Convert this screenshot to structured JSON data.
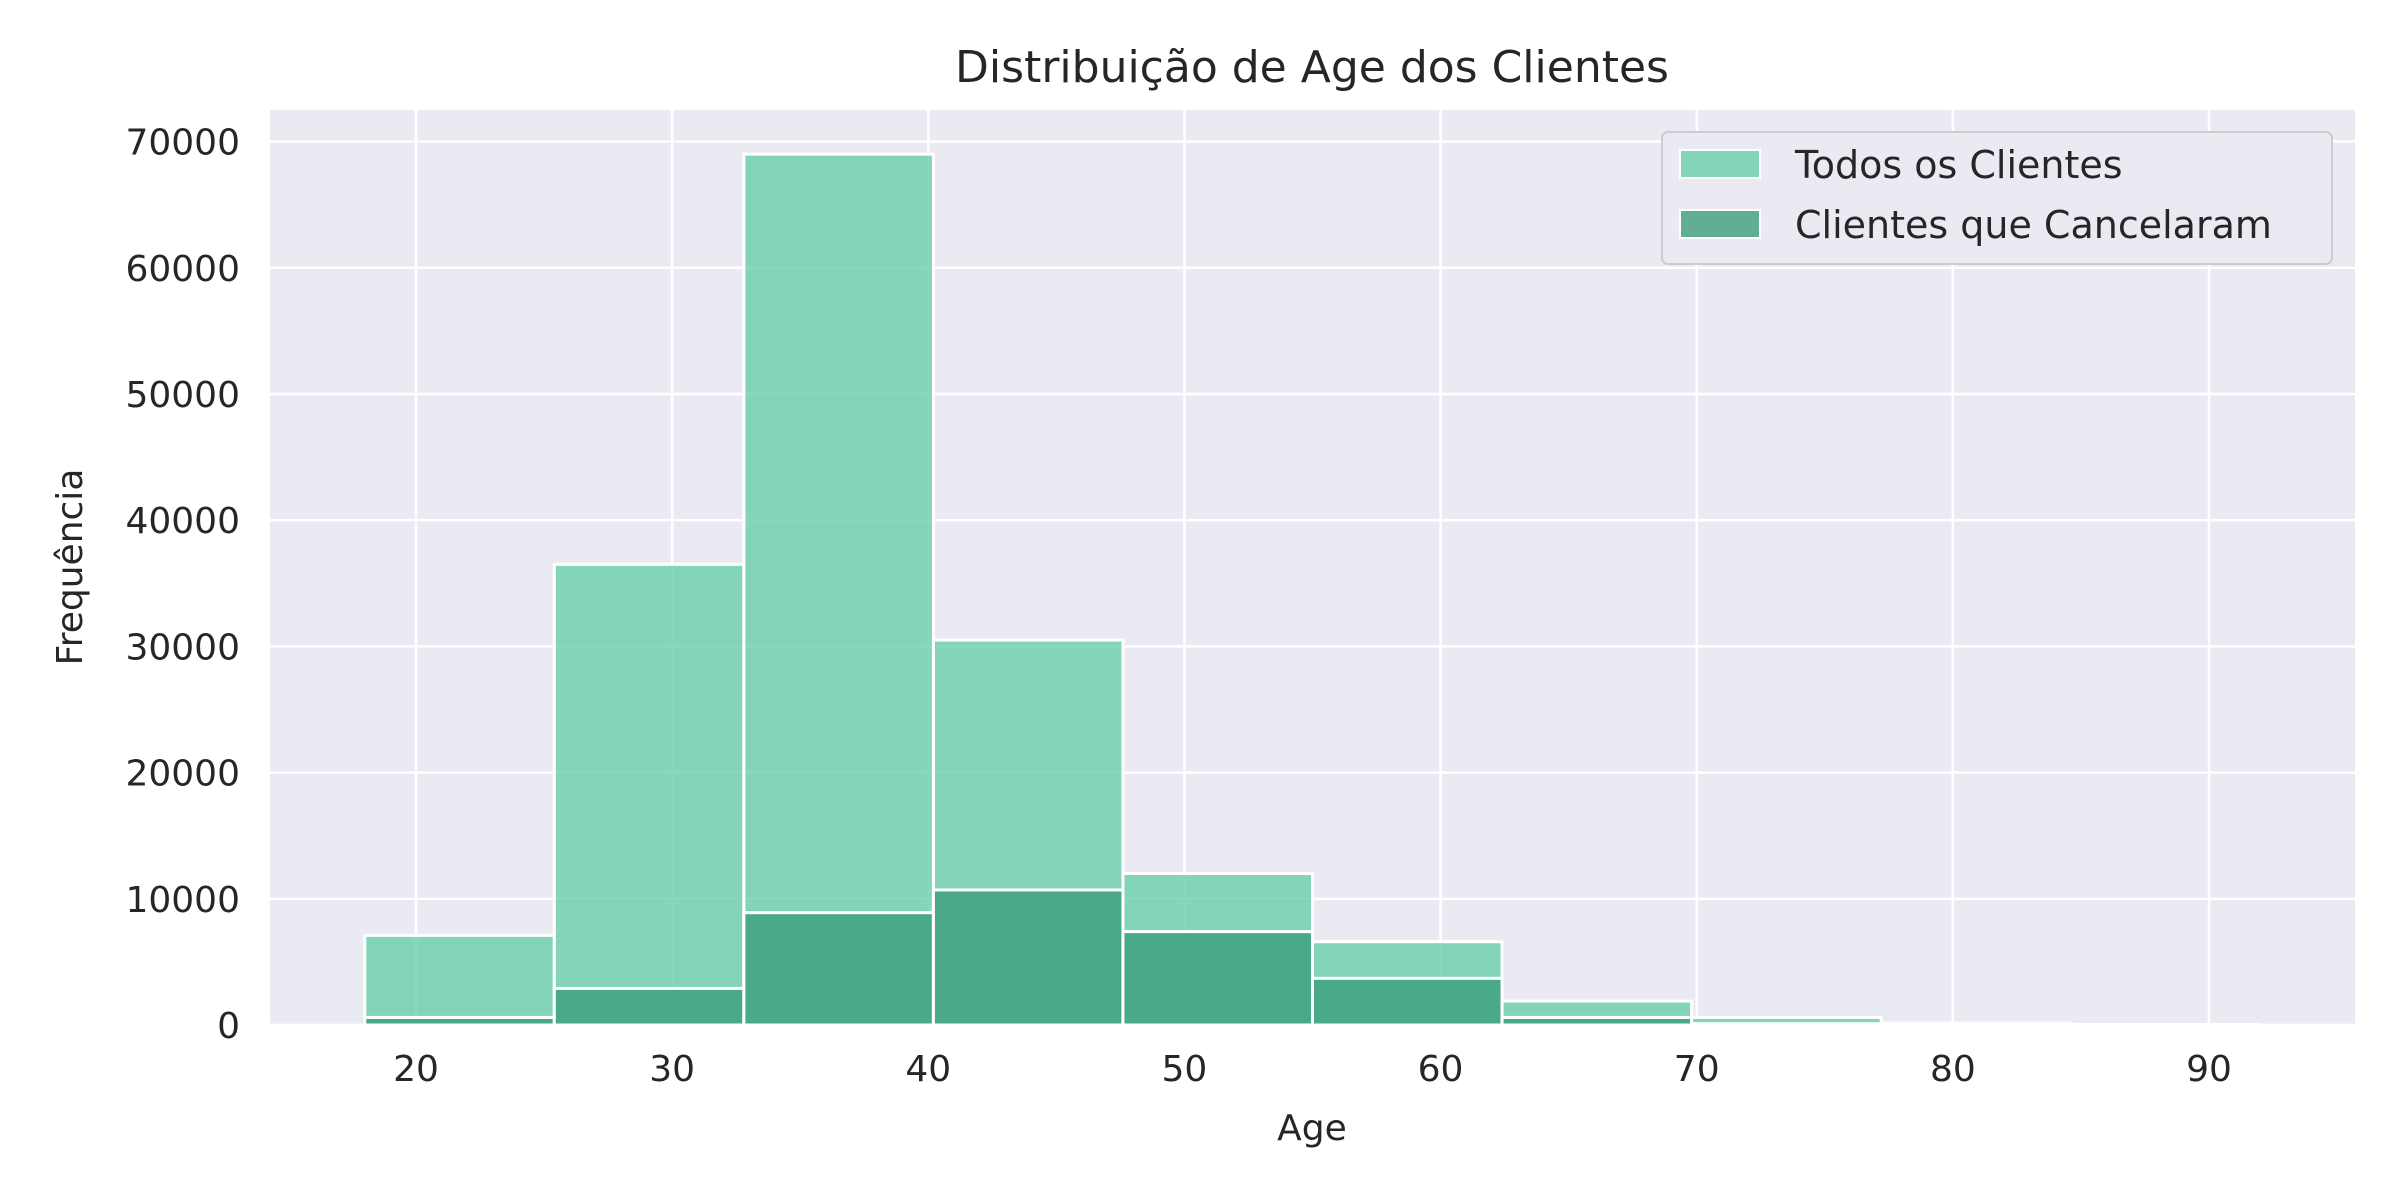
{
  "chart_data": {
    "type": "bar",
    "title": "Distribuição de Age dos Clientes",
    "xlabel": "Age",
    "ylabel": "Frequência",
    "xlim": [
      14.3,
      95.7
    ],
    "ylim": [
      0,
      72500
    ],
    "xticks": [
      20,
      30,
      40,
      50,
      60,
      70,
      80,
      90
    ],
    "yticks": [
      0,
      10000,
      20000,
      30000,
      40000,
      50000,
      60000,
      70000
    ],
    "bin_edges": [
      18,
      25.4,
      32.8,
      40.2,
      47.6,
      55,
      62.4,
      69.8,
      77.2,
      84.6,
      92
    ],
    "series": [
      {
        "name": "Todos os Clientes",
        "color": "#66cdaa",
        "values": [
          7100,
          36500,
          69000,
          30500,
          12000,
          6600,
          1900,
          600,
          150,
          50
        ]
      },
      {
        "name": "Clientes que Cancelaram",
        "color": "#3a9c78",
        "values": [
          600,
          2900,
          8900,
          10700,
          7400,
          3700,
          600,
          100,
          20,
          5
        ]
      }
    ],
    "grid": true,
    "legend_position": "top-right",
    "background": "#eaeaf2"
  }
}
